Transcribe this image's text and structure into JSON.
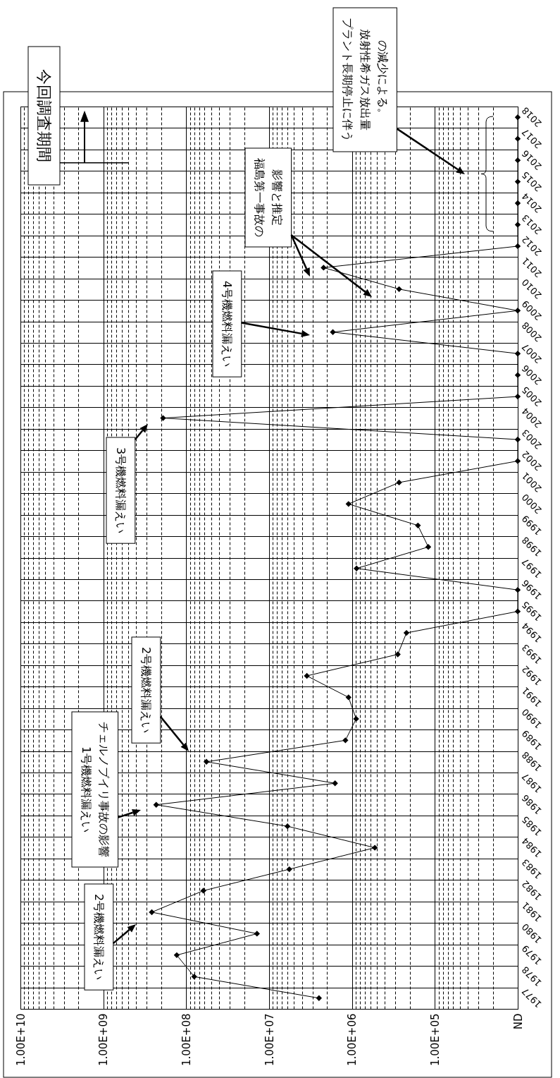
{
  "chart_data": {
    "type": "line",
    "orientation": "horizontal",
    "log": "x",
    "grid": true,
    "marker": "diamond",
    "line_style": "solid",
    "color": "#000000",
    "categories": [
      "2018",
      "2017",
      "2016",
      "2015",
      "2014",
      "2013",
      "2012",
      "2011",
      "2010",
      "2009",
      "2008",
      "2007",
      "2006",
      "2005",
      "2004",
      "2003",
      "2002",
      "2001",
      "2000",
      "1999",
      "1998",
      "1997",
      "1996",
      "1995",
      "1994",
      "1993",
      "1992",
      "1991",
      "1990",
      "1989",
      "1988",
      "1987",
      "1986",
      "1985",
      "1984",
      "1983",
      "1982",
      "1981",
      "1980",
      "1979",
      "1978",
      "1977"
    ],
    "values": [
      10000,
      10000,
      10000,
      10000,
      10000,
      10000,
      10000,
      2200000,
      270000,
      10000,
      1700000,
      10000,
      10000,
      10000,
      190000000,
      10000,
      10000,
      270000,
      1100000,
      160000,
      120000,
      880000,
      10000,
      10000,
      220000,
      280000,
      3500000,
      1100000,
      890000,
      1200000,
      57000000,
      1600000,
      230000000,
      6000000,
      530000,
      5700000,
      62000000,
      260000000,
      14000000,
      130000000,
      80000000,
      2500000
    ],
    "xlim": [
      10000000000,
      10000
    ],
    "xticks": [
      {
        "value": 10000000000,
        "label": "1.00E+10"
      },
      {
        "value": 1000000000,
        "label": "1.00E+09"
      },
      {
        "value": 100000000,
        "label": "1.00E+08"
      },
      {
        "value": 10000000,
        "label": "1.00E+07"
      },
      {
        "value": 1000000,
        "label": "1.00E+06"
      },
      {
        "value": 100000,
        "label": "1.00E+05"
      },
      {
        "value": 10000,
        "label": "ND"
      },
      {
        "value": 9000000000,
        "label": null
      },
      {
        "value": 8000000000,
        "label": null
      },
      {
        "value": 7000000000,
        "label": null
      },
      {
        "value": 6000000000,
        "label": null
      },
      {
        "value": 5000000000,
        "label": null
      },
      {
        "value": 4000000000,
        "label": null
      },
      {
        "value": 3000000000,
        "label": null
      },
      {
        "value": 2000000000,
        "label": null
      },
      {
        "value": 900000000,
        "label": null
      },
      {
        "value": 800000000,
        "label": null
      },
      {
        "value": 700000000,
        "label": null
      },
      {
        "value": 600000000,
        "label": null
      },
      {
        "value": 500000000,
        "label": null
      },
      {
        "value": 400000000,
        "label": null
      },
      {
        "value": 300000000,
        "label": null
      },
      {
        "value": 200000000,
        "label": null
      },
      {
        "value": 90000000,
        "label": null
      },
      {
        "value": 80000000,
        "label": null
      },
      {
        "value": 70000000,
        "label": null
      },
      {
        "value": 60000000,
        "label": null
      },
      {
        "value": 50000000,
        "label": null
      },
      {
        "value": 40000000,
        "label": null
      },
      {
        "value": 30000000,
        "label": null
      },
      {
        "value": 20000000,
        "label": null
      },
      {
        "value": 9000000,
        "label": null
      },
      {
        "value": 8000000,
        "label": null
      },
      {
        "value": 7000000,
        "label": null
      },
      {
        "value": 6000000,
        "label": null
      },
      {
        "value": 5000000,
        "label": null
      },
      {
        "value": 4000000,
        "label": null
      },
      {
        "value": 3000000,
        "label": null
      },
      {
        "value": 2000000,
        "label": null
      },
      {
        "value": 900000,
        "label": null
      },
      {
        "value": 800000,
        "label": null
      },
      {
        "value": 700000,
        "label": null
      },
      {
        "value": 600000,
        "label": null
      },
      {
        "value": 500000,
        "label": null
      },
      {
        "value": 400000,
        "label": null
      },
      {
        "value": 300000,
        "label": null
      },
      {
        "value": 200000,
        "label": null
      },
      {
        "value": 90000,
        "label": null
      },
      {
        "value": 80000,
        "label": null
      },
      {
        "value": 70000,
        "label": null
      },
      {
        "value": 60000,
        "label": null
      },
      {
        "value": 50000,
        "label": null
      },
      {
        "value": 40000,
        "label": null
      },
      {
        "value": 30000,
        "label": null
      },
      {
        "value": 20000,
        "label": null
      }
    ],
    "annotations": [
      "今回調査期間",
      "プラント長期停止に伴う放射性希ガス放出量の減少による。",
      "福島第一事故の影響と推定",
      "4号機燃料漏えい",
      "3号機燃料漏えい",
      "2号機燃料漏えい",
      "1号機燃料漏えいチェルノブイリ事故の影響",
      "2号機燃料漏えい"
    ]
  }
}
